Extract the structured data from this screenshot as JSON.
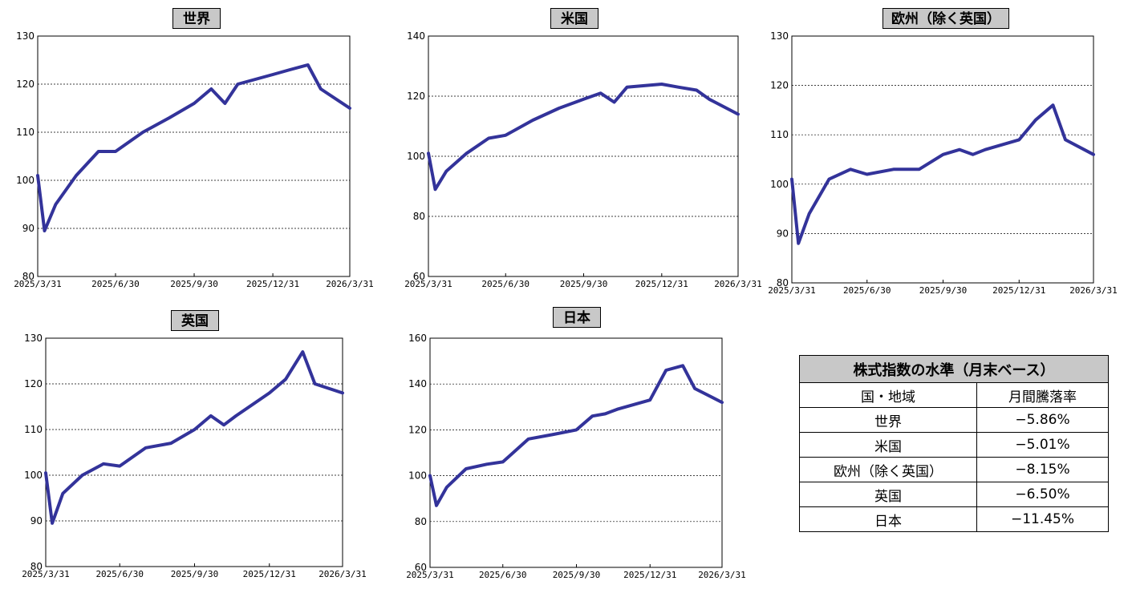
{
  "charts": [
    {
      "id": "world",
      "title": "世界",
      "yticks": [
        "130",
        "120",
        "110",
        "100",
        "90",
        "80"
      ]
    },
    {
      "id": "us",
      "title": "米国",
      "yticks": [
        "140",
        "120",
        "100",
        "80",
        "60"
      ]
    },
    {
      "id": "europe",
      "title": "欧州（除く英国）",
      "yticks": [
        "130",
        "120",
        "110",
        "100",
        "90",
        "80"
      ]
    },
    {
      "id": "uk",
      "title": "英国",
      "yticks": [
        "130",
        "120",
        "110",
        "100",
        "90",
        "80"
      ]
    },
    {
      "id": "japan",
      "title": "日本",
      "yticks": [
        "160",
        "140",
        "120",
        "100",
        "80",
        "60"
      ]
    }
  ],
  "x_ticks": [
    "2025/3/31",
    "2025/6/30",
    "2025/9/30",
    "2025/12/31",
    "2026/3/31"
  ],
  "chart_data": [
    {
      "type": "line",
      "title": "世界",
      "ylim": [
        80,
        130
      ],
      "x": [
        "2025/3/31",
        "2025/4/8",
        "2025/4/21",
        "2025/5/15",
        "2025/6/10",
        "2025/6/30",
        "2025/8/1",
        "2025/9/1",
        "2025/9/30",
        "2025/10/20",
        "2025/11/5",
        "2025/11/20",
        "2025/12/31",
        "2026/1/20",
        "2026/2/10",
        "2026/2/25",
        "2026/3/31"
      ],
      "series": [
        {
          "values": [
            101,
            89.5,
            95,
            101,
            106,
            106,
            110,
            113,
            116,
            119,
            116,
            120,
            122,
            123,
            124,
            119,
            115
          ]
        }
      ]
    },
    {
      "type": "line",
      "title": "米国",
      "ylim": [
        60,
        140
      ],
      "x": [
        "2025/3/31",
        "2025/4/8",
        "2025/4/21",
        "2025/5/15",
        "2025/6/10",
        "2025/6/30",
        "2025/8/1",
        "2025/9/1",
        "2025/9/30",
        "2025/10/20",
        "2025/11/5",
        "2025/11/20",
        "2025/12/31",
        "2026/1/20",
        "2026/2/10",
        "2026/2/25",
        "2026/3/31"
      ],
      "series": [
        {
          "values": [
            101,
            89,
            95,
            101,
            106,
            107,
            112,
            116,
            119,
            121,
            118,
            123,
            124,
            123,
            122,
            119,
            114
          ]
        }
      ]
    },
    {
      "type": "line",
      "title": "欧州（除く英国）",
      "ylim": [
        80,
        130
      ],
      "x": [
        "2025/3/31",
        "2025/4/8",
        "2025/4/21",
        "2025/5/15",
        "2025/6/10",
        "2025/6/30",
        "2025/8/1",
        "2025/9/1",
        "2025/9/30",
        "2025/10/20",
        "2025/11/5",
        "2025/11/20",
        "2025/12/31",
        "2026/1/20",
        "2026/2/10",
        "2026/2/25",
        "2026/3/31"
      ],
      "series": [
        {
          "values": [
            101,
            88,
            94,
            101,
            103,
            102,
            103,
            103,
            106,
            107,
            106,
            107,
            109,
            113,
            116,
            109,
            106
          ]
        }
      ]
    },
    {
      "type": "line",
      "title": "英国",
      "ylim": [
        80,
        130
      ],
      "x": [
        "2025/3/31",
        "2025/4/8",
        "2025/4/21",
        "2025/5/15",
        "2025/6/10",
        "2025/6/30",
        "2025/8/1",
        "2025/9/1",
        "2025/9/30",
        "2025/10/20",
        "2025/11/5",
        "2025/11/20",
        "2025/12/31",
        "2026/1/20",
        "2026/2/10",
        "2026/2/25",
        "2026/3/31"
      ],
      "series": [
        {
          "values": [
            100.5,
            89.5,
            96,
            100,
            102.5,
            102,
            106,
            107,
            110,
            113,
            111,
            113,
            118,
            121,
            127,
            120,
            118
          ]
        }
      ]
    },
    {
      "type": "line",
      "title": "日本",
      "ylim": [
        60,
        160
      ],
      "x": [
        "2025/3/31",
        "2025/4/8",
        "2025/4/21",
        "2025/5/15",
        "2025/6/10",
        "2025/6/30",
        "2025/8/1",
        "2025/9/1",
        "2025/9/30",
        "2025/10/20",
        "2025/11/5",
        "2025/11/20",
        "2025/12/31",
        "2026/1/20",
        "2026/2/10",
        "2026/2/25",
        "2026/3/31"
      ],
      "series": [
        {
          "values": [
            100,
            87,
            95,
            103,
            105,
            106,
            116,
            118,
            120,
            126,
            127,
            129,
            133,
            146,
            148,
            138,
            132
          ]
        }
      ]
    },
    {
      "type": "table",
      "title": "株式指数の水準（月末ベース）",
      "columns": [
        "国・地域",
        "月間騰落率"
      ],
      "rows": [
        [
          "世界",
          "−5.86%"
        ],
        [
          "米国",
          "−5.01%"
        ],
        [
          "欧州（除く英国）",
          "−8.15%"
        ],
        [
          "英国",
          "−6.50%"
        ],
        [
          "日本",
          "−11.45%"
        ]
      ]
    }
  ],
  "summary_table": {
    "title": "株式指数の水準（月末ベース）",
    "headers": [
      "国・地域",
      "月間騰落率"
    ],
    "rows": [
      {
        "region": "世界",
        "change": "−5.86%"
      },
      {
        "region": "米国",
        "change": "−5.01%"
      },
      {
        "region": "欧州（除く英国）",
        "change": "−8.15%"
      },
      {
        "region": "英国",
        "change": "−6.50%"
      },
      {
        "region": "日本",
        "change": "−11.45%"
      }
    ]
  },
  "colors": {
    "line": "#33339a",
    "grid": "#000000",
    "title_bg": "#c8c8c8",
    "table_head_bg": "#c8c8c8"
  }
}
